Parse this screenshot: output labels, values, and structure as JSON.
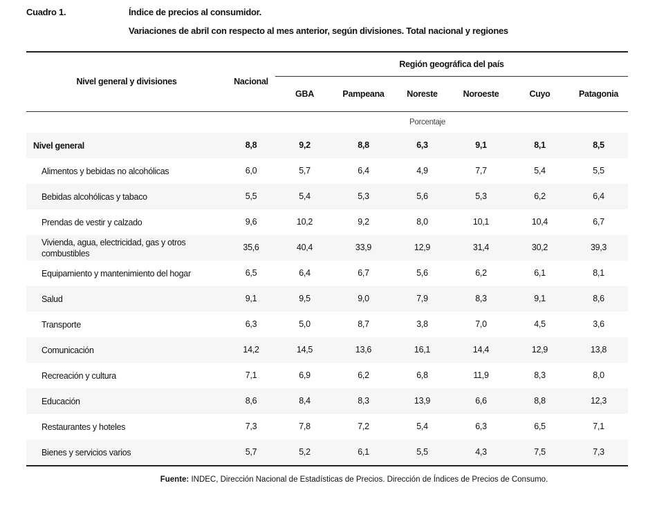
{
  "header": {
    "label": "Cuadro 1.",
    "title": "Índice de precios al consumidor.",
    "subtitle": "Variaciones de abril con respecto al mes anterior, según divisiones. Total nacional y regiones"
  },
  "table": {
    "col_label": "Nivel general y divisiones",
    "col_nacional": "Nacional",
    "region_group": "Región geográfica del país",
    "regions": [
      "GBA",
      "Pampeana",
      "Noreste",
      "Noroeste",
      "Cuyo",
      "Patagonia"
    ],
    "unit": "Porcentaje",
    "rows": [
      {
        "label": "Nivel general",
        "values": [
          "8,8",
          "9,2",
          "8,8",
          "6,3",
          "9,1",
          "8,1",
          "8,5"
        ]
      },
      {
        "label": "Alimentos y bebidas no alcohólicas",
        "values": [
          "6,0",
          "5,7",
          "6,4",
          "4,9",
          "7,7",
          "5,4",
          "5,5"
        ]
      },
      {
        "label": "Bebidas alcohólicas y tabaco",
        "values": [
          "5,5",
          "5,4",
          "5,3",
          "5,6",
          "5,3",
          "6,2",
          "6,4"
        ]
      },
      {
        "label": "Prendas de vestir y calzado",
        "values": [
          "9,6",
          "10,2",
          "9,2",
          "8,0",
          "10,1",
          "10,4",
          "6,7"
        ]
      },
      {
        "label": "Vivienda, agua, electricidad, gas y otros combustibles",
        "values": [
          "35,6",
          "40,4",
          "33,9",
          "12,9",
          "31,4",
          "30,2",
          "39,3"
        ]
      },
      {
        "label": "Equipamiento y mantenimiento del hogar",
        "values": [
          "6,5",
          "6,4",
          "6,7",
          "5,6",
          "6,2",
          "6,1",
          "8,1"
        ]
      },
      {
        "label": "Salud",
        "values": [
          "9,1",
          "9,5",
          "9,0",
          "7,9",
          "8,3",
          "9,1",
          "8,6"
        ]
      },
      {
        "label": "Transporte",
        "values": [
          "6,3",
          "5,0",
          "8,7",
          "3,8",
          "7,0",
          "4,5",
          "3,6"
        ]
      },
      {
        "label": "Comunicación",
        "values": [
          "14,2",
          "14,5",
          "13,6",
          "16,1",
          "14,4",
          "12,9",
          "13,8"
        ]
      },
      {
        "label": "Recreación y cultura",
        "values": [
          "7,1",
          "6,9",
          "6,2",
          "6,8",
          "11,9",
          "8,3",
          "8,0"
        ]
      },
      {
        "label": "Educación",
        "values": [
          "8,6",
          "8,4",
          "8,3",
          "13,9",
          "6,6",
          "8,8",
          "12,3"
        ]
      },
      {
        "label": "Restaurantes y hoteles",
        "values": [
          "7,3",
          "7,8",
          "7,2",
          "5,4",
          "6,3",
          "6,5",
          "7,1"
        ]
      },
      {
        "label": "Bienes y servicios varios",
        "values": [
          "5,7",
          "5,2",
          "6,1",
          "5,5",
          "4,3",
          "7,5",
          "7,3"
        ]
      }
    ]
  },
  "source": {
    "label": "Fuente:",
    "text": " INDEC, Dirección Nacional de Estadísticas de Precios. Dirección de Índices de Precios de Consumo."
  }
}
